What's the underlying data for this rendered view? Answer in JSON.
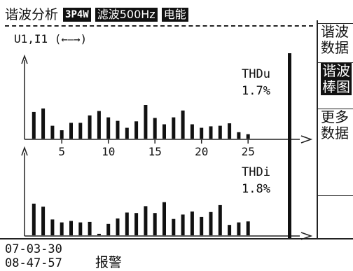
{
  "header": {
    "title": "谐波分析",
    "tags": [
      "3P4W",
      "滤波500Hz",
      "电能"
    ]
  },
  "chart_label": {
    "text": "U1,I1 (",
    "arrow": "←—→",
    "close": ")"
  },
  "upper": {
    "thd_label": "THDu",
    "thd_value": "1.7%"
  },
  "lower": {
    "thd_label": "THDi",
    "thd_value": "1.8%"
  },
  "x_ticks": [
    "5",
    "10",
    "15",
    "20",
    "25"
  ],
  "menu": {
    "items": [
      {
        "lines": [
          "谐波",
          "数据"
        ],
        "active": false
      },
      {
        "lines": [
          "谐波",
          "棒图"
        ],
        "active": true
      },
      {
        "lines": [
          "更多",
          "数据"
        ],
        "active": false
      },
      {
        "lines": [],
        "active": false
      }
    ]
  },
  "status": {
    "date": "07-03-30",
    "time": "08-47-57",
    "alarm": "报警"
  },
  "chart_data": [
    {
      "type": "bar",
      "name": "THDu",
      "categories": [
        2,
        3,
        4,
        5,
        6,
        7,
        8,
        9,
        10,
        11,
        12,
        13,
        14,
        15,
        16,
        17,
        18,
        19,
        20,
        21,
        22,
        23,
        24,
        25
      ],
      "values": [
        5.4,
        6.1,
        2.6,
        1.7,
        3.2,
        3.2,
        4.7,
        5.6,
        4.3,
        3.6,
        2.2,
        3.5,
        6.8,
        4.2,
        2.9,
        4.3,
        5.7,
        2.9,
        2.2,
        2.5,
        2.6,
        3.1,
        1.3,
        0.9
      ],
      "fundamental_value": 100,
      "ylim": [
        0,
        17
      ]
    },
    {
      "type": "bar",
      "name": "THDi",
      "categories": [
        2,
        3,
        4,
        5,
        6,
        7,
        8,
        9,
        10,
        11,
        12,
        13,
        14,
        15,
        16,
        17,
        18,
        19,
        20,
        21,
        22,
        23,
        24,
        25
      ],
      "values": [
        6.4,
        5.8,
        3.2,
        2.6,
        2.9,
        2.6,
        2.7,
        0.3,
        2.3,
        3.4,
        4.6,
        4.5,
        5.9,
        4.5,
        6.7,
        3.3,
        4.2,
        4.8,
        3.7,
        4.7,
        6.1,
        2.1,
        2.6,
        2.8
      ],
      "fundamental_value": 100,
      "ylim": [
        0,
        17
      ]
    }
  ]
}
